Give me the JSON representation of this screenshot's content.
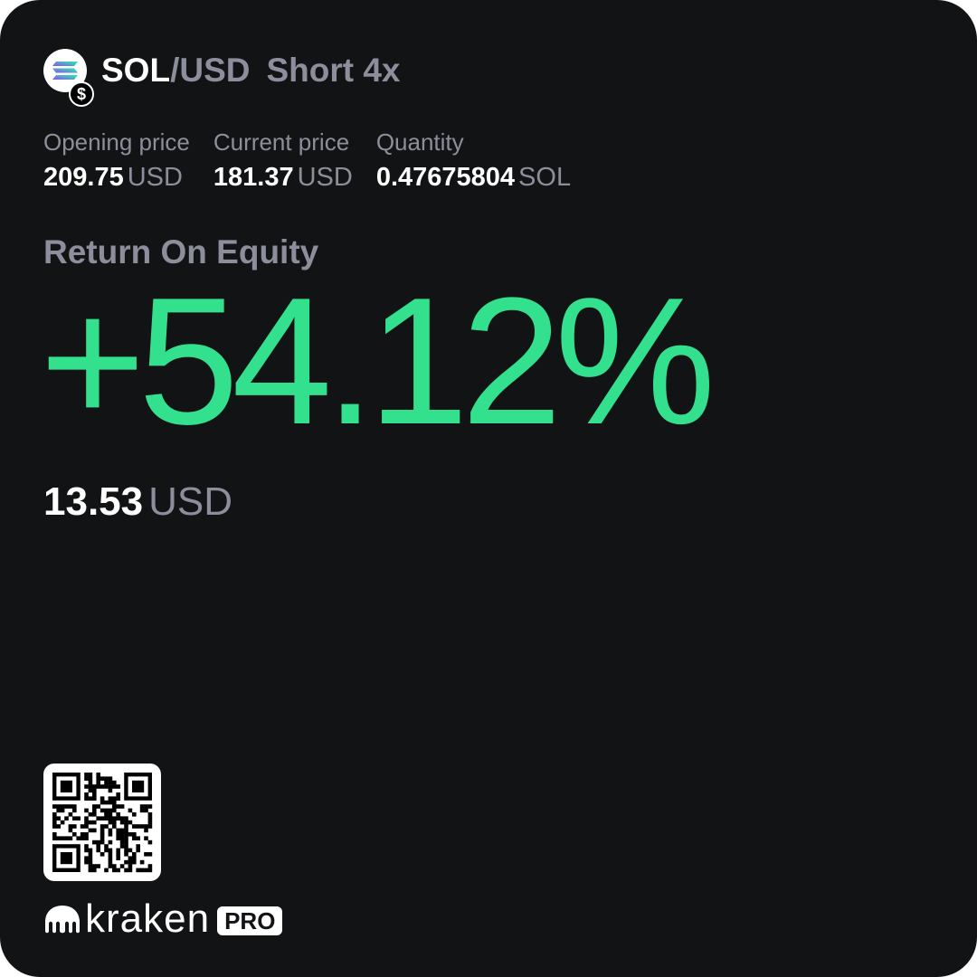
{
  "header": {
    "base": "SOL",
    "separator": "/",
    "quote": "USD",
    "position": "Short 4x",
    "badge_symbol": "$",
    "coin_icon": "solana-icon"
  },
  "stats": [
    {
      "label": "Opening price",
      "value": "209.75",
      "unit": "USD"
    },
    {
      "label": "Current price",
      "value": "181.37",
      "unit": "USD"
    },
    {
      "label": "Quantity",
      "value": "0.47675804",
      "unit": "SOL"
    }
  ],
  "roe": {
    "label": "Return On Equity",
    "value": "+54.12%"
  },
  "pnl": {
    "value": "13.53",
    "unit": "USD"
  },
  "brand": {
    "name": "kraken",
    "badge": "PRO"
  },
  "colors": {
    "background": "#121314",
    "accent_green": "#33e08d",
    "muted": "#8d8e9c",
    "text": "#ffffff"
  }
}
